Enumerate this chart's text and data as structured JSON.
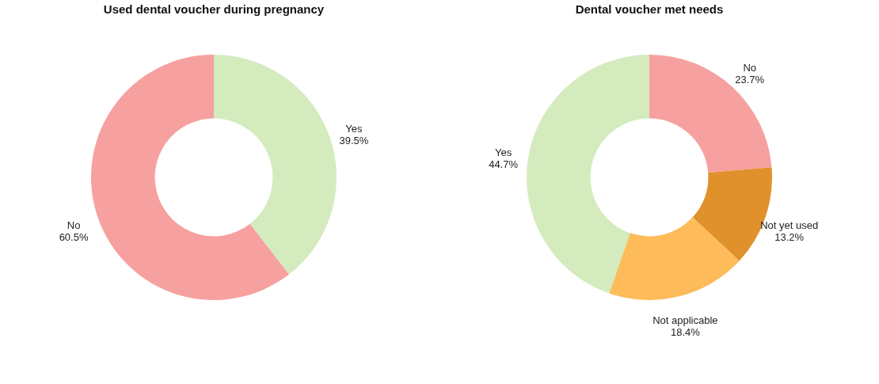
{
  "chart_data": [
    {
      "type": "donut",
      "title": "Used dental voucher during pregnancy",
      "categories": [
        "Yes",
        "No"
      ],
      "values": [
        39.5,
        60.5
      ],
      "colors": [
        "#d4ebbe",
        "#f6a19f"
      ],
      "value_labels": [
        "39.5%",
        "60.5%"
      ],
      "legend": false
    },
    {
      "type": "donut",
      "title": "Dental voucher met needs",
      "categories": [
        "No",
        "Not yet used",
        "Not applicable",
        "Yes"
      ],
      "values": [
        23.7,
        13.2,
        18.4,
        44.7
      ],
      "colors": [
        "#f6a19f",
        "#e0912c",
        "#fdbb5a",
        "#d4ebbe"
      ],
      "value_labels": [
        "23.7%",
        "13.2%",
        "18.4%",
        "44.7%"
      ],
      "legend": false
    }
  ]
}
